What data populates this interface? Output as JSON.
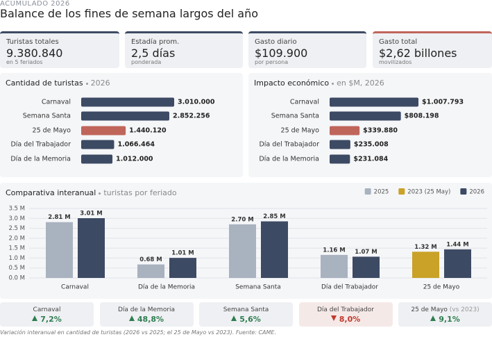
{
  "header": {
    "kicker": "ACUMULADO 2026",
    "title": "Balance de los fines de semana largos del año"
  },
  "kpis": [
    {
      "label": "Turistas totales",
      "value": "9.380.840",
      "note": "en 5 feriados",
      "color": "#3d4a63"
    },
    {
      "label": "Estadía prom.",
      "value": "2,5 días",
      "note": "ponderada",
      "color": "#3d4a63"
    },
    {
      "label": "Gasto diario",
      "value": "$109.900",
      "note": "por persona",
      "color": "#3d4a63"
    },
    {
      "label": "Gasto total",
      "value": "$2,62 billones",
      "note": "movilizados",
      "color": "#c0655a"
    }
  ],
  "chart_data": [
    {
      "type": "barh",
      "title": "Cantidad de turistas",
      "subtitle": "2026",
      "categories": [
        "Carnaval",
        "Semana Santa",
        "25 de Mayo",
        "Día del Trabajador",
        "Día de la Memoria"
      ],
      "values": [
        3010000,
        2852256,
        1440120,
        1066464,
        1012000
      ],
      "value_labels": [
        "3.010.000",
        "2.852.256",
        "1.440.120",
        "1.066.464",
        "1.012.000"
      ],
      "colors": [
        "#3d4a63",
        "#3d4a63",
        "#c0655a",
        "#3d4a63",
        "#3d4a63"
      ]
    },
    {
      "type": "barh",
      "title": "Impacto económico",
      "subtitle": "en $M, 2026",
      "categories": [
        "Carnaval",
        "Semana Santa",
        "25 de Mayo",
        "Día del Trabajador",
        "Día de la Memoria"
      ],
      "values": [
        1007793,
        808198,
        339880,
        235008,
        231084
      ],
      "value_labels": [
        "$1.007.793",
        "$808.198",
        "$339.880",
        "$235.008",
        "$231.084"
      ],
      "colors": [
        "#3d4a63",
        "#3d4a63",
        "#c0655a",
        "#3d4a63",
        "#3d4a63"
      ]
    },
    {
      "type": "bar",
      "title": "Comparativa interanual",
      "subtitle": "turistas por feriado",
      "categories": [
        "Carnaval",
        "Día de la Memoria",
        "Semana Santa",
        "Día del Trabajador",
        "25 de Mayo"
      ],
      "series": [
        {
          "name": "2025",
          "color": "#a9b2bf",
          "values": [
            2.81,
            0.68,
            2.7,
            1.16,
            null
          ],
          "value_labels": [
            "2.81 M",
            "0.68 M",
            "2.70 M",
            "1.16 M",
            null
          ]
        },
        {
          "name": "2023 (25 May)",
          "color": "#c9a227",
          "values": [
            null,
            null,
            null,
            null,
            1.32
          ],
          "value_labels": [
            null,
            null,
            null,
            null,
            "1.32 M"
          ]
        },
        {
          "name": "2026",
          "color": "#3d4a63",
          "values": [
            3.01,
            1.01,
            2.85,
            1.07,
            1.44
          ],
          "value_labels": [
            "3.01 M",
            "1.01 M",
            "2.85 M",
            "1.07 M",
            "1.44 M"
          ]
        }
      ],
      "ylim": [
        0,
        3.5
      ],
      "yticks": [
        {
          "value": 0,
          "label": "0.0 M"
        },
        {
          "value": 0.5,
          "label": "0.5 M"
        },
        {
          "value": 1,
          "label": "1.0 M"
        },
        {
          "value": 1.5,
          "label": "1.5 M"
        },
        {
          "value": 2,
          "label": "2.0 M"
        },
        {
          "value": 2.5,
          "label": "2.5 M"
        },
        {
          "value": 3,
          "label": "3.0 M"
        },
        {
          "value": 3.5,
          "label": "3.5 M"
        }
      ],
      "grid": true,
      "legend": "top-right"
    }
  ],
  "changes": [
    {
      "name": "Carnaval",
      "change": "7,2%",
      "direction": "up"
    },
    {
      "name": "Día de la Memoria",
      "change": "48,8%",
      "direction": "up"
    },
    {
      "name": "Semana Santa",
      "change": "5,6%",
      "direction": "up"
    },
    {
      "name": "Día del Trabajador",
      "change": "8,0%",
      "direction": "down"
    },
    {
      "name": "25 de Mayo",
      "note": "(vs 2023)",
      "change": "9,1%",
      "direction": "up"
    }
  ],
  "footnote": "Variación interanual en cantidad de turistas (2026 vs 2025; el 25 de Mayo vs 2023). Fuente: CAME."
}
